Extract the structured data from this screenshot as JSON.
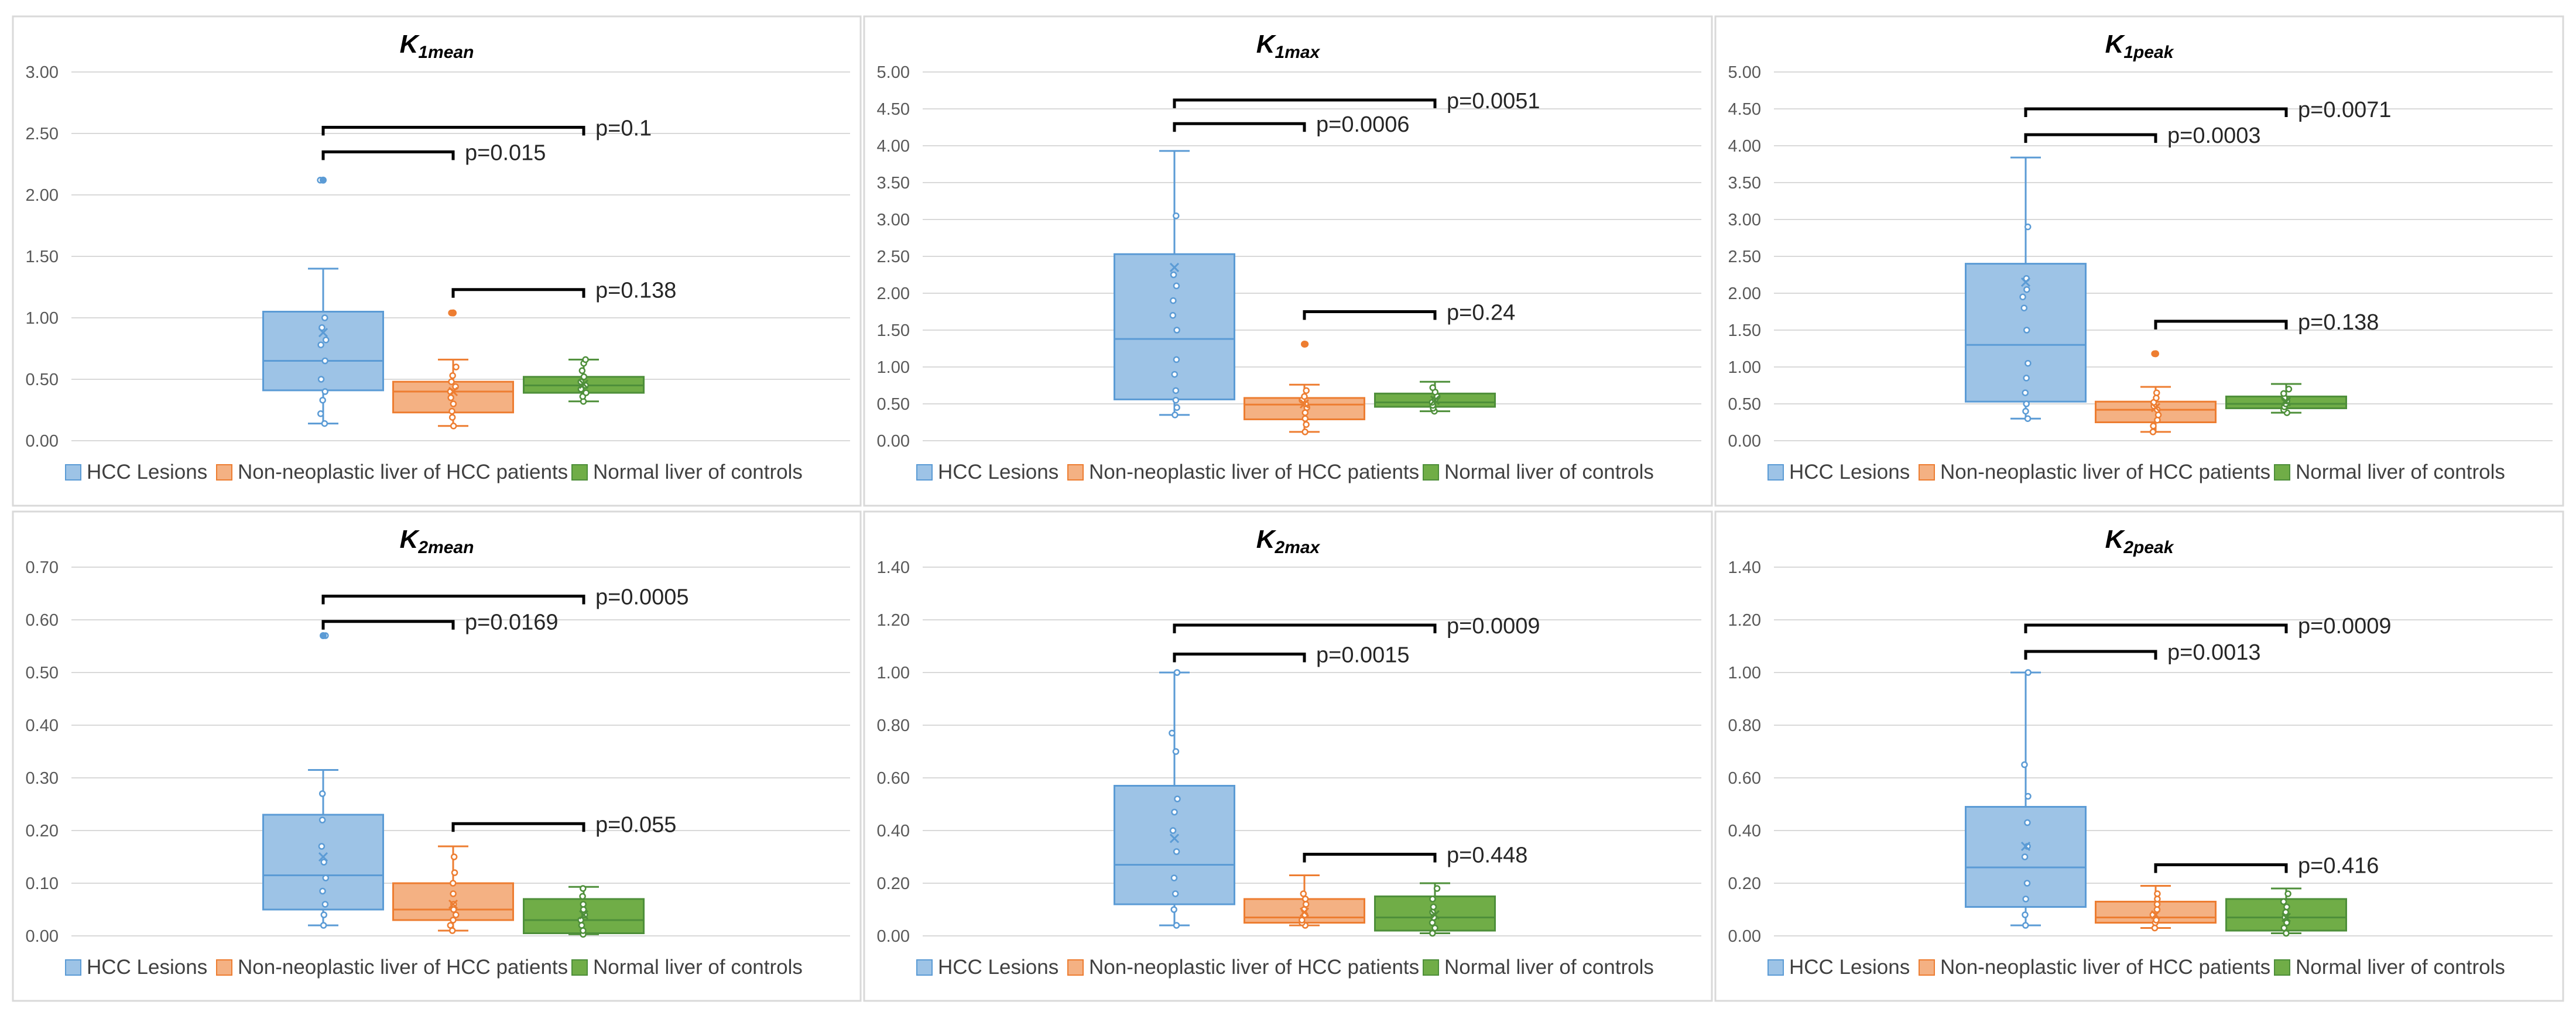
{
  "figure": {
    "legend": [
      {
        "label": "HCC Lesions",
        "color": "#5b9bd5",
        "fill": "#9dc3e6"
      },
      {
        "label": "Non-neoplastic liver of HCC patients",
        "color": "#ed7d31",
        "fill": "#f4b183"
      },
      {
        "label": "Normal liver of controls",
        "color": "#4e8f3a",
        "fill": "#70ad47"
      }
    ]
  },
  "chart_data": [
    {
      "type": "box",
      "title_main": "K",
      "title_sub": "1mean",
      "yticks": [
        "0.00",
        "0.50",
        "1.00",
        "1.50",
        "2.00",
        "2.50",
        "3.00"
      ],
      "ylim": [
        0,
        3
      ],
      "series": [
        {
          "name": "HCC Lesions",
          "min": 0.14,
          "q1": 0.41,
          "median": 0.65,
          "q3": 1.05,
          "max": 1.4,
          "mean": 0.88,
          "points": [
            0.14,
            0.22,
            0.33,
            0.4,
            0.5,
            0.65,
            0.78,
            0.82,
            0.92,
            1.0,
            2.12
          ],
          "outliers": [
            2.12
          ]
        },
        {
          "name": "Non-neoplastic liver of HCC patients",
          "min": 0.12,
          "q1": 0.23,
          "median": 0.4,
          "q3": 0.48,
          "max": 0.66,
          "mean": 0.4,
          "points": [
            0.12,
            0.19,
            0.24,
            0.3,
            0.35,
            0.4,
            0.44,
            0.48,
            0.53,
            0.6,
            1.04
          ],
          "outliers": [
            1.04
          ]
        },
        {
          "name": "Normal liver of controls",
          "min": 0.32,
          "q1": 0.39,
          "median": 0.45,
          "q3": 0.52,
          "max": 0.66,
          "mean": 0.46,
          "points": [
            0.32,
            0.36,
            0.39,
            0.42,
            0.45,
            0.48,
            0.52,
            0.57,
            0.63,
            0.66
          ],
          "outliers": []
        }
      ],
      "comparisons": [
        {
          "label": "p=0.1",
          "from": 0,
          "to": 2,
          "y": 2.55
        },
        {
          "label": "p=0.015",
          "from": 0,
          "to": 1,
          "y": 2.35
        },
        {
          "label": "p=0.138",
          "from": 1,
          "to": 2,
          "y": 1.23
        }
      ]
    },
    {
      "type": "box",
      "title_main": "K",
      "title_sub": "1max",
      "yticks": [
        "0.00",
        "0.50",
        "1.00",
        "1.50",
        "2.00",
        "2.50",
        "3.00",
        "3.50",
        "4.00",
        "4.50",
        "5.00"
      ],
      "ylim": [
        0,
        5
      ],
      "series": [
        {
          "name": "HCC Lesions",
          "min": 0.35,
          "q1": 0.56,
          "median": 1.38,
          "q3": 2.53,
          "max": 3.93,
          "mean": 2.35,
          "points": [
            0.35,
            0.45,
            0.55,
            0.68,
            0.9,
            1.1,
            1.5,
            1.7,
            1.9,
            2.1,
            2.25,
            3.05
          ],
          "outliers": []
        },
        {
          "name": "Non-neoplastic liver of HCC patients",
          "min": 0.12,
          "q1": 0.29,
          "median": 0.49,
          "q3": 0.58,
          "max": 0.76,
          "mean": 0.5,
          "points": [
            0.12,
            0.22,
            0.3,
            0.38,
            0.45,
            0.5,
            0.55,
            0.6,
            0.68,
            1.31
          ],
          "outliers": [
            1.31
          ]
        },
        {
          "name": "Normal liver of controls",
          "min": 0.4,
          "q1": 0.46,
          "median": 0.52,
          "q3": 0.64,
          "max": 0.8,
          "mean": 0.55,
          "points": [
            0.4,
            0.44,
            0.48,
            0.52,
            0.56,
            0.6,
            0.66,
            0.72
          ],
          "outliers": []
        }
      ],
      "comparisons": [
        {
          "label": "p=0.0051",
          "from": 0,
          "to": 2,
          "y": 4.62
        },
        {
          "label": "p=0.0006",
          "from": 0,
          "to": 1,
          "y": 4.3
        },
        {
          "label": "p=0.24",
          "from": 1,
          "to": 2,
          "y": 1.75
        }
      ]
    },
    {
      "type": "box",
      "title_main": "K",
      "title_sub": "1peak",
      "yticks": [
        "0.00",
        "0.50",
        "1.00",
        "1.50",
        "2.00",
        "2.50",
        "3.00",
        "3.50",
        "4.00",
        "4.50",
        "5.00"
      ],
      "ylim": [
        0,
        5
      ],
      "series": [
        {
          "name": "HCC Lesions",
          "min": 0.3,
          "q1": 0.53,
          "median": 1.3,
          "q3": 2.4,
          "max": 3.84,
          "mean": 2.15,
          "points": [
            0.3,
            0.4,
            0.5,
            0.65,
            0.85,
            1.05,
            1.5,
            1.8,
            1.95,
            2.05,
            2.2,
            2.9
          ],
          "outliers": []
        },
        {
          "name": "Non-neoplastic liver of HCC patients",
          "min": 0.12,
          "q1": 0.25,
          "median": 0.42,
          "q3": 0.53,
          "max": 0.73,
          "mean": 0.45,
          "points": [
            0.12,
            0.2,
            0.28,
            0.35,
            0.42,
            0.47,
            0.52,
            0.58,
            0.65,
            1.18
          ],
          "outliers": [
            1.18
          ]
        },
        {
          "name": "Normal liver of controls",
          "min": 0.38,
          "q1": 0.44,
          "median": 0.5,
          "q3": 0.6,
          "max": 0.77,
          "mean": 0.53,
          "points": [
            0.38,
            0.42,
            0.46,
            0.5,
            0.54,
            0.58,
            0.64,
            0.7
          ],
          "outliers": []
        }
      ],
      "comparisons": [
        {
          "label": "p=0.0071",
          "from": 0,
          "to": 2,
          "y": 4.5
        },
        {
          "label": "p=0.0003",
          "from": 0,
          "to": 1,
          "y": 4.15
        },
        {
          "label": "p=0.138",
          "from": 1,
          "to": 2,
          "y": 1.62
        }
      ]
    },
    {
      "type": "box",
      "title_main": "K",
      "title_sub": "2mean",
      "yticks": [
        "0.00",
        "0.10",
        "0.20",
        "0.30",
        "0.40",
        "0.50",
        "0.60",
        "0.70"
      ],
      "ylim": [
        0,
        0.7
      ],
      "series": [
        {
          "name": "HCC Lesions",
          "min": 0.02,
          "q1": 0.05,
          "median": 0.115,
          "q3": 0.23,
          "max": 0.315,
          "mean": 0.15,
          "points": [
            0.02,
            0.04,
            0.06,
            0.085,
            0.11,
            0.14,
            0.17,
            0.22,
            0.27,
            0.57
          ],
          "outliers": [
            0.57
          ]
        },
        {
          "name": "Non-neoplastic liver of HCC patients",
          "min": 0.01,
          "q1": 0.03,
          "median": 0.05,
          "q3": 0.1,
          "max": 0.17,
          "mean": 0.06,
          "points": [
            0.01,
            0.02,
            0.03,
            0.04,
            0.05,
            0.06,
            0.08,
            0.1,
            0.12,
            0.15
          ],
          "outliers": []
        },
        {
          "name": "Normal liver of controls",
          "min": 0.003,
          "q1": 0.005,
          "median": 0.03,
          "q3": 0.07,
          "max": 0.093,
          "mean": 0.04,
          "points": [
            0.003,
            0.01,
            0.02,
            0.03,
            0.04,
            0.05,
            0.06,
            0.075,
            0.09
          ],
          "outliers": []
        }
      ],
      "comparisons": [
        {
          "label": "p=0.0005",
          "from": 0,
          "to": 2,
          "y": 0.645
        },
        {
          "label": "p=0.0169",
          "from": 0,
          "to": 1,
          "y": 0.597
        },
        {
          "label": "p=0.055",
          "from": 1,
          "to": 2,
          "y": 0.213
        }
      ]
    },
    {
      "type": "box",
      "title_main": "K",
      "title_sub": "2max",
      "yticks": [
        "0.00",
        "0.20",
        "0.40",
        "0.60",
        "0.80",
        "1.00",
        "1.20",
        "1.40"
      ],
      "ylim": [
        0,
        1.4
      ],
      "series": [
        {
          "name": "HCC Lesions",
          "min": 0.04,
          "q1": 0.12,
          "median": 0.27,
          "q3": 0.57,
          "max": 1.0,
          "mean": 0.37,
          "points": [
            0.04,
            0.1,
            0.16,
            0.22,
            0.32,
            0.4,
            0.47,
            0.52,
            0.7,
            0.77,
            1.0
          ],
          "outliers": []
        },
        {
          "name": "Non-neoplastic liver of HCC patients",
          "min": 0.04,
          "q1": 0.05,
          "median": 0.07,
          "q3": 0.14,
          "max": 0.23,
          "mean": 0.09,
          "points": [
            0.04,
            0.05,
            0.06,
            0.08,
            0.1,
            0.12,
            0.14,
            0.16
          ],
          "outliers": []
        },
        {
          "name": "Normal liver of controls",
          "min": 0.01,
          "q1": 0.02,
          "median": 0.07,
          "q3": 0.15,
          "max": 0.2,
          "mean": 0.08,
          "points": [
            0.01,
            0.03,
            0.05,
            0.07,
            0.09,
            0.11,
            0.14,
            0.18
          ],
          "outliers": []
        }
      ],
      "comparisons": [
        {
          "label": "p=0.0009",
          "from": 0,
          "to": 2,
          "y": 1.18
        },
        {
          "label": "p=0.0015",
          "from": 0,
          "to": 1,
          "y": 1.07
        },
        {
          "label": "p=0.448",
          "from": 1,
          "to": 2,
          "y": 0.31
        }
      ]
    },
    {
      "type": "box",
      "title_main": "K",
      "title_sub": "2peak",
      "yticks": [
        "0.00",
        "0.20",
        "0.40",
        "0.60",
        "0.80",
        "1.00",
        "1.20",
        "1.40"
      ],
      "ylim": [
        0,
        1.4
      ],
      "series": [
        {
          "name": "HCC Lesions",
          "min": 0.04,
          "q1": 0.11,
          "median": 0.26,
          "q3": 0.49,
          "max": 1.0,
          "mean": 0.34,
          "points": [
            0.04,
            0.08,
            0.14,
            0.2,
            0.3,
            0.34,
            0.43,
            0.53,
            0.65,
            1.0
          ],
          "outliers": []
        },
        {
          "name": "Non-neoplastic liver of HCC patients",
          "min": 0.03,
          "q1": 0.05,
          "median": 0.07,
          "q3": 0.13,
          "max": 0.19,
          "mean": 0.08,
          "points": [
            0.03,
            0.05,
            0.06,
            0.08,
            0.1,
            0.12,
            0.14,
            0.16
          ],
          "outliers": []
        },
        {
          "name": "Normal liver of controls",
          "min": 0.01,
          "q1": 0.02,
          "median": 0.07,
          "q3": 0.14,
          "max": 0.18,
          "mean": 0.07,
          "points": [
            0.01,
            0.03,
            0.05,
            0.07,
            0.09,
            0.11,
            0.13,
            0.16
          ],
          "outliers": []
        }
      ],
      "comparisons": [
        {
          "label": "p=0.0009",
          "from": 0,
          "to": 2,
          "y": 1.18
        },
        {
          "label": "p=0.0013",
          "from": 0,
          "to": 1,
          "y": 1.08
        },
        {
          "label": "p=0.416",
          "from": 1,
          "to": 2,
          "y": 0.27
        }
      ]
    }
  ]
}
